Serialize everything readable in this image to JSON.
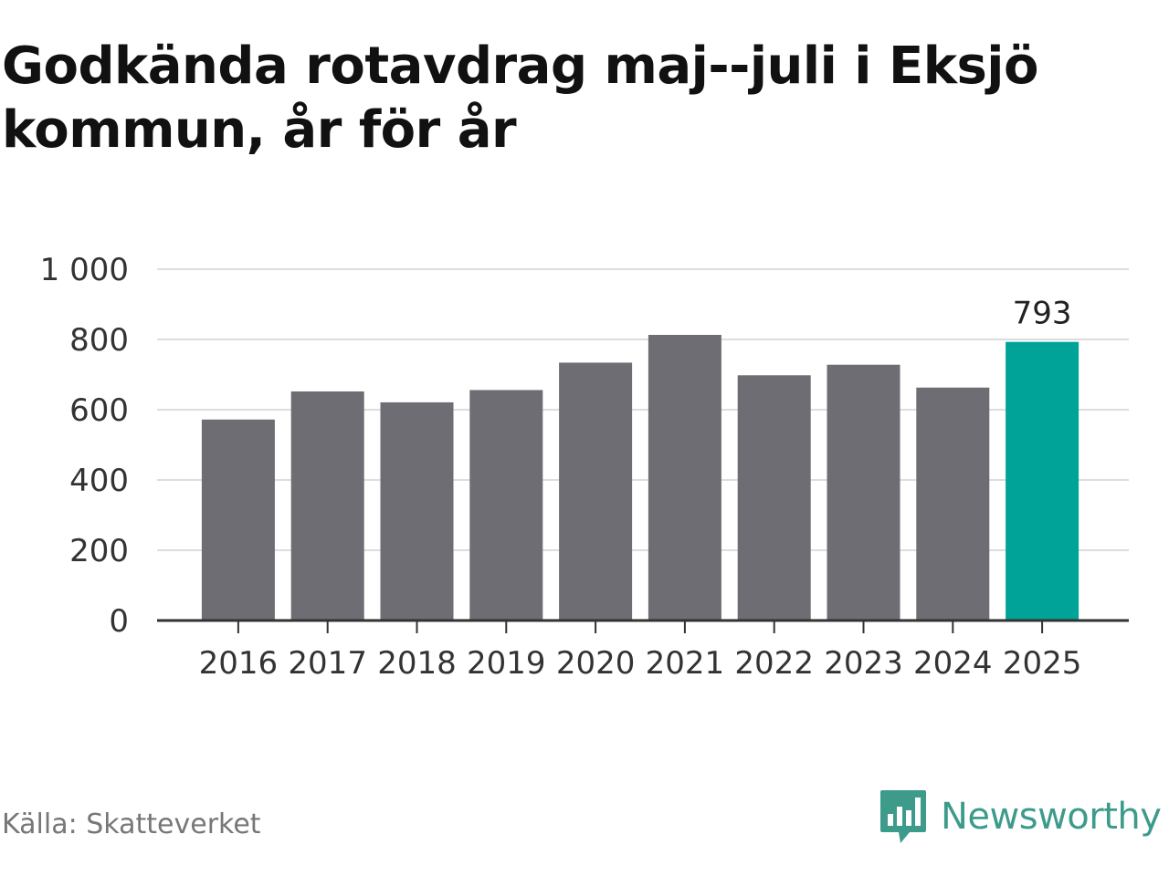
{
  "header": {
    "title": "Godkända rotavdrag maj--juli i Eksjö kommun, år för år"
  },
  "chart_data": {
    "type": "bar",
    "title": "Godkända rotavdrag maj--juli i Eksjö kommun, år för år",
    "xlabel": "",
    "ylabel": "",
    "categories": [
      "2016",
      "2017",
      "2018",
      "2019",
      "2020",
      "2021",
      "2022",
      "2023",
      "2024",
      "2025"
    ],
    "values": [
      572,
      652,
      621,
      656,
      734,
      813,
      698,
      728,
      663,
      793
    ],
    "ylim": [
      0,
      1000
    ],
    "yticks": [
      0,
      200,
      400,
      600,
      800,
      1000
    ],
    "ytick_labels": [
      "0",
      "200",
      "400",
      "600",
      "800",
      "1 000"
    ],
    "highlight_index": 9,
    "data_labels": [
      {
        "index": 9,
        "text": "793"
      }
    ],
    "grid": true,
    "legend": "none",
    "colors": {
      "bar": "#6e6d73",
      "highlight": "#00a398",
      "grid": "#dddddd",
      "axis": "#333333"
    }
  },
  "footer": {
    "source": "Källa: Skatteverket",
    "brand": "Newsworthy",
    "brand_icon": "newsworthy-logo-icon",
    "brand_color": "#3d9b8c"
  }
}
